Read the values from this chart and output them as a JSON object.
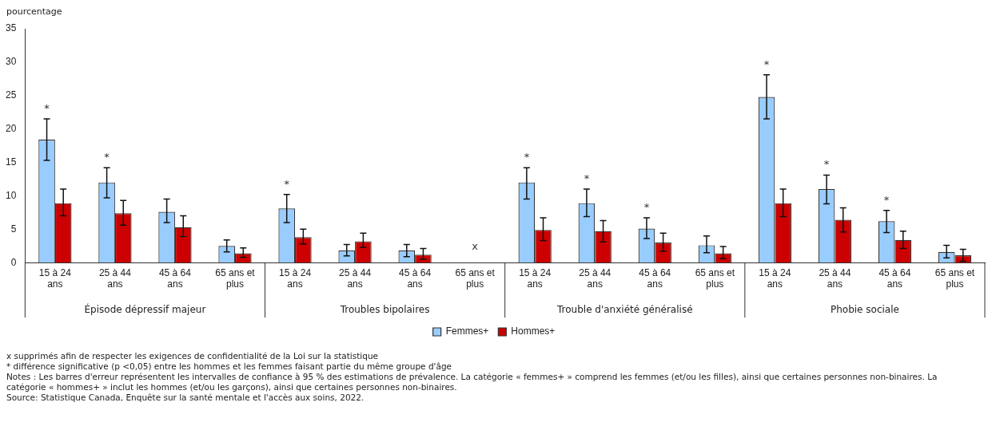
{
  "chart_data": {
    "type": "bar",
    "ylabel": "pourcentage",
    "categories": [
      "15 à 24 ans",
      "25 à 44 ans",
      "45 à 64 ans",
      "65 ans et plus",
      "15 à 24 ans",
      "25 à 44 ans",
      "45 à 64 ans",
      "65 ans et plus",
      "15 à 24 ans",
      "25 à 44 ans",
      "45 à 64 ans",
      "65 ans et plus",
      "15 à 24 ans",
      "25 à 44 ans",
      "45 à 64 ans",
      "65 ans et plus"
    ],
    "series": [
      {
        "name": "Femmes+",
        "color": "#99ccff",
        "values": [
          18.4,
          12.0,
          7.6,
          2.5,
          8.1,
          1.8,
          1.8,
          null,
          12.0,
          8.9,
          5.1,
          2.6,
          24.8,
          11.0,
          6.2,
          1.6
        ],
        "errors": [
          [
            15.3,
            21.5
          ],
          [
            9.7,
            14.2
          ],
          [
            6.0,
            9.5
          ],
          [
            1.6,
            3.4
          ],
          [
            6.0,
            10.2
          ],
          [
            1.0,
            2.7
          ],
          [
            0.9,
            2.7
          ],
          null,
          [
            9.5,
            14.2
          ],
          [
            6.9,
            11.0
          ],
          [
            3.6,
            6.7
          ],
          [
            1.5,
            4.0
          ],
          [
            21.5,
            28.1
          ],
          [
            8.8,
            13.1
          ],
          [
            4.5,
            7.8
          ],
          [
            0.7,
            2.6
          ]
        ],
        "value_labels": [
          "*",
          "*",
          null,
          null,
          "*",
          null,
          null,
          null,
          "*",
          "*",
          "*",
          null,
          "*",
          "*",
          "*",
          null
        ]
      },
      {
        "name": "Hommes+",
        "color": "#cc0000",
        "values": [
          8.9,
          7.4,
          5.3,
          1.4,
          3.8,
          3.2,
          1.2,
          null,
          4.9,
          4.7,
          3.0,
          1.4,
          8.9,
          6.4,
          3.4,
          1.1
        ],
        "errors": [
          [
            7.0,
            11.0
          ],
          [
            5.6,
            9.3
          ],
          [
            3.9,
            7.0
          ],
          [
            0.8,
            2.2
          ],
          [
            2.8,
            5.0
          ],
          [
            2.3,
            4.4
          ],
          [
            0.5,
            2.1
          ],
          null,
          [
            3.3,
            6.7
          ],
          [
            3.1,
            6.3
          ],
          [
            1.7,
            4.4
          ],
          [
            0.6,
            2.4
          ],
          [
            6.9,
            11.0
          ],
          [
            4.6,
            8.2
          ],
          [
            2.1,
            4.7
          ],
          [
            0.2,
            2.0
          ]
        ],
        "value_labels": [
          null,
          null,
          null,
          null,
          null,
          null,
          null,
          "x",
          null,
          null,
          null,
          null,
          null,
          null,
          null,
          null
        ]
      }
    ],
    "ylim": [
      0,
      35
    ],
    "yticks": [
      0,
      5,
      10,
      15,
      20,
      25,
      30,
      35
    ],
    "grid": false,
    "legend": "bottom",
    "annotations": [
      "Épisode dépressif majeur",
      "Troubles bipolaires",
      "Trouble d'anxiété généralisé",
      "Phobie sociale",
      "x supprimés afin de respecter les exigences de confidentialité de la Loi sur la statistique",
      "* différence significative (p <0,05) entre les hommes et les femmes faisant partie du même groupe d'âge",
      "Notes : Les barres d'erreur représentent les intervalles de confiance à 95 % des estimations de prévalence. La catégorie « femmes+ » comprend les femmes (et/ou les filles), ainsi que certaines personnes non-binaires. La catégorie « hommes+ » inclut les hommes (et/ou les garçons), ainsi que certaines personnes non-binaires.",
      "Source: Statistique Canada, Enquête sur la santé mentale et l'accès aux soins, 2022."
    ]
  }
}
